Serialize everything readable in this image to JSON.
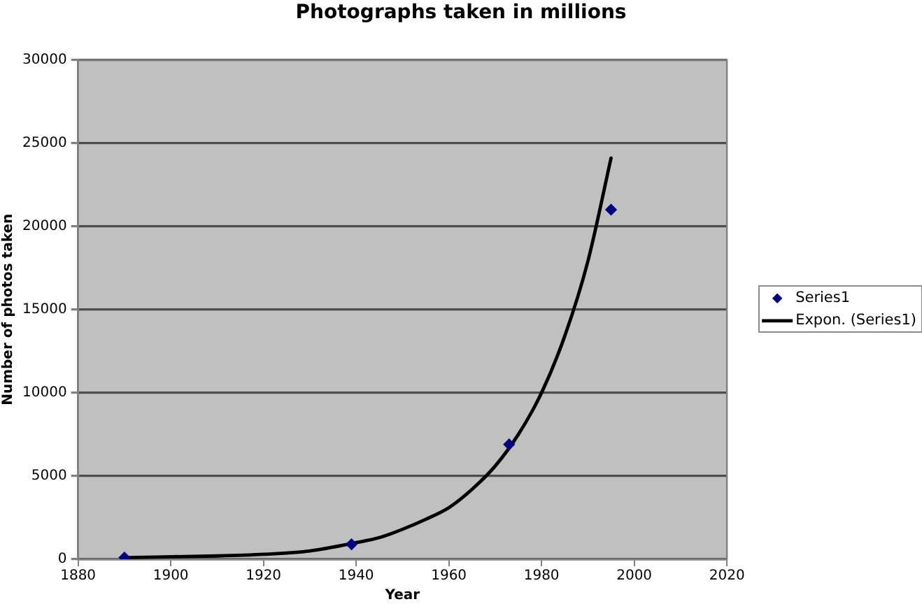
{
  "chart_data": {
    "type": "scatter",
    "title": "Photographs taken in millions",
    "xlabel": "Year",
    "ylabel": "Number of photos taken",
    "series": [
      {
        "name": "Series1",
        "color": "#000080",
        "marker": "diamond",
        "x": [
          1890,
          1939,
          1973,
          1995
        ],
        "values": [
          100,
          900,
          6900,
          21000
        ]
      },
      {
        "name": "Expon. (Series1)",
        "type": "line",
        "color": "#000000",
        "marker": "none",
        "x": [
          1890,
          1910,
          1920,
          1930,
          1940,
          1945,
          1950,
          1955,
          1960,
          1965,
          1970,
          1975,
          1980,
          1985,
          1990,
          1995
        ],
        "values": [
          100,
          200,
          300,
          500,
          1000,
          1300,
          1800,
          2400,
          3100,
          4200,
          5600,
          7500,
          10000,
          13400,
          17900,
          24100
        ]
      }
    ],
    "xlim": [
      1880,
      2020
    ],
    "ylim": [
      0,
      30000
    ],
    "xticks": [
      1880,
      1900,
      1920,
      1940,
      1960,
      1980,
      2000,
      2020
    ],
    "yticks": [
      0,
      5000,
      10000,
      15000,
      20000,
      25000,
      30000
    ],
    "grid": "y",
    "legend": "right"
  }
}
